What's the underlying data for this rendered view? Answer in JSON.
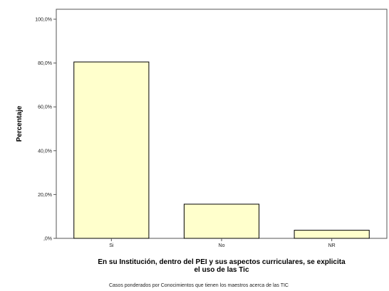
{
  "chart_data": {
    "type": "bar",
    "categories": [
      "Si",
      "No",
      "NR"
    ],
    "values": [
      80.5,
      15.6,
      3.7
    ],
    "ylabel": "Percentaje",
    "xlabel_lines": [
      "En su Institución, dentro del PEI y sus aspectos curriculares, se explicita",
      "el uso de las Tic"
    ],
    "footnote": "Casos ponderados por Conocimientos que tienen los maestros acerca de las TIC",
    "ylim": [
      0,
      100
    ],
    "yticks": [
      0,
      20,
      40,
      60,
      80,
      100
    ],
    "ytick_labels": [
      ",0%",
      "20,0%",
      "40,0%",
      "60,0%",
      "80,0%",
      "100,0%"
    ],
    "grid": false,
    "bar_color": "#ffffcc",
    "bar_stroke": "#000000"
  }
}
